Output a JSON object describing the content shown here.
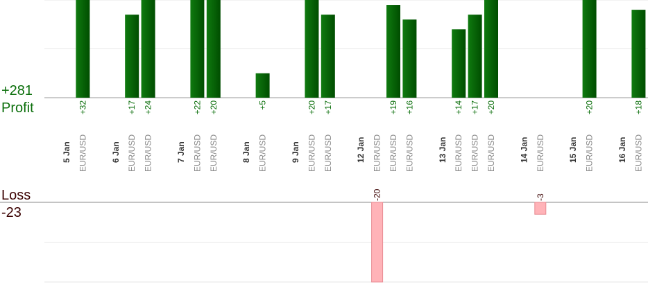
{
  "chart_data": {
    "type": "bar",
    "profit": {
      "label": "Profit",
      "total": 281,
      "total_label": "+281",
      "color": "#0a6e0a",
      "ylim": [
        0,
        20
      ],
      "yticks": [
        0,
        10,
        20
      ]
    },
    "loss": {
      "label": "Loss",
      "total": -23,
      "color": "#ffb3b8",
      "ylim": [
        -20,
        0
      ],
      "yticks": [
        -20,
        -10,
        0
      ]
    },
    "days": [
      {
        "label": "5 Jan",
        "trades": [
          {
            "pair": "EUR/USD",
            "value": 32,
            "value_label": "+32"
          }
        ]
      },
      {
        "label": "6 Jan",
        "trades": [
          {
            "pair": "EUR/USD",
            "value": 17,
            "value_label": "+17"
          },
          {
            "pair": "EUR/USD",
            "value": 24,
            "value_label": "+24"
          }
        ]
      },
      {
        "label": "7 Jan",
        "trades": [
          {
            "pair": "EUR/USD",
            "value": 22,
            "value_label": "+22"
          },
          {
            "pair": "EUR/USD",
            "value": 20,
            "value_label": "+20"
          }
        ]
      },
      {
        "label": "8 Jan",
        "trades": [
          {
            "pair": "EUR/USD",
            "value": 5,
            "value_label": "+5"
          }
        ]
      },
      {
        "label": "9 Jan",
        "trades": [
          {
            "pair": "EUR/USD",
            "value": 20,
            "value_label": "+20"
          },
          {
            "pair": "EUR/USD",
            "value": 17,
            "value_label": "+17"
          }
        ]
      },
      {
        "label": "12 Jan",
        "trades": [
          {
            "pair": "EUR/USD",
            "value": -20
          },
          {
            "pair": "EUR/USD",
            "value": 19,
            "value_label": "+19"
          },
          {
            "pair": "EUR/USD",
            "value": 16,
            "value_label": "+16"
          }
        ]
      },
      {
        "label": "13 Jan",
        "trades": [
          {
            "pair": "EUR/USD",
            "value": 14,
            "value_label": "+14"
          },
          {
            "pair": "EUR/USD",
            "value": 17,
            "value_label": "+17"
          },
          {
            "pair": "EUR/USD",
            "value": 20,
            "value_label": "+20"
          }
        ]
      },
      {
        "label": "14 Jan",
        "trades": [
          {
            "pair": "EUR/USD",
            "value": -3
          }
        ]
      },
      {
        "label": "15 Jan",
        "trades": [
          {
            "pair": "EUR/USD",
            "value": 20,
            "value_label": "+20"
          }
        ]
      },
      {
        "label": "16 Jan",
        "trades": [
          {
            "pair": "EUR/USD",
            "value": 18,
            "value_label": "+18"
          }
        ]
      }
    ]
  }
}
